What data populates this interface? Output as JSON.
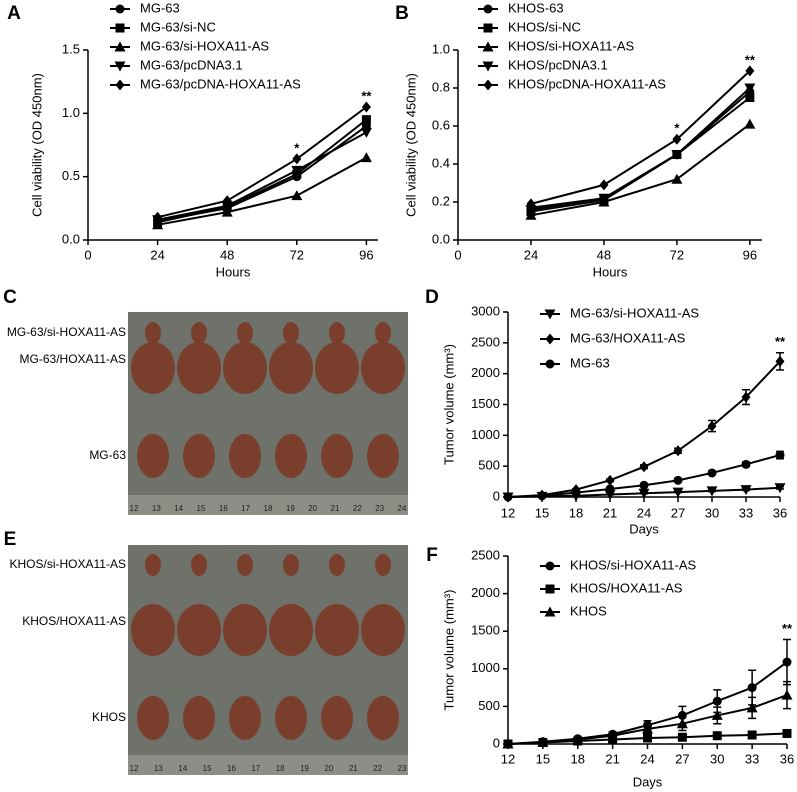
{
  "chart_data": [
    {
      "type": "line",
      "panel": "A",
      "x_label": "Hours",
      "y_label": "Cell viability (OD 450nm)",
      "x": [
        24,
        48,
        72,
        96
      ],
      "xlim": [
        0,
        100
      ],
      "xticks": [
        0,
        24,
        48,
        72,
        96
      ],
      "ylim": [
        0,
        1.5
      ],
      "yticks": [
        {
          "value": 0,
          "label": "0.0"
        },
        0.5,
        {
          "value": 1,
          "label": "1.0"
        },
        1.5
      ],
      "series": [
        {
          "name": "MG-63",
          "color": "#000000",
          "marker": "circle",
          "values": [
            0.15,
            0.25,
            0.5,
            0.9
          ]
        },
        {
          "name": "MG-63/si-NC",
          "color": "#000000",
          "marker": "square",
          "values": [
            0.14,
            0.26,
            0.52,
            0.95
          ]
        },
        {
          "name": "MG-63/si-HOXA11-AS",
          "color": "#000000",
          "marker": "triangle-up",
          "values": [
            0.12,
            0.22,
            0.35,
            0.65
          ]
        },
        {
          "name": "MG-63/pcDNA3.1",
          "color": "#000000",
          "marker": "triangle-down",
          "values": [
            0.16,
            0.27,
            0.55,
            0.85
          ]
        },
        {
          "name": "MG-63/pcDNA-HOXA11-AS",
          "color": "#000000",
          "marker": "diamond",
          "values": [
            0.18,
            0.31,
            0.64,
            1.05
          ]
        }
      ],
      "annotations": [
        {
          "text": "*",
          "x": 72
        },
        {
          "text": "**",
          "x": 96
        }
      ]
    },
    {
      "type": "line",
      "panel": "B",
      "x_label": "Hours",
      "y_label": "Cell viability (OD 450nm)",
      "x": [
        24,
        48,
        72,
        96
      ],
      "xlim": [
        0,
        100
      ],
      "xticks": [
        0,
        24,
        48,
        72,
        96
      ],
      "ylim": [
        0,
        1
      ],
      "yticks": [
        {
          "value": 0,
          "label": "0.0"
        },
        0.2,
        0.4,
        0.6,
        0.8,
        {
          "value": 1,
          "label": "1.0"
        }
      ],
      "series": [
        {
          "name": "KHOS-63",
          "color": "#000000",
          "marker": "circle",
          "values": [
            0.17,
            0.22,
            0.45,
            0.78
          ]
        },
        {
          "name": "KHOS/si-NC",
          "color": "#000000",
          "marker": "square",
          "values": [
            0.15,
            0.21,
            0.45,
            0.75
          ]
        },
        {
          "name": "KHOS/si-HOXA11-AS",
          "color": "#000000",
          "marker": "triangle-up",
          "values": [
            0.13,
            0.2,
            0.32,
            0.61
          ]
        },
        {
          "name": "KHOS/pcDNA3.1",
          "color": "#000000",
          "marker": "triangle-down",
          "values": [
            0.16,
            0.22,
            0.45,
            0.8
          ]
        },
        {
          "name": "KHOS/pcDNA-HOXA11-AS",
          "color": "#000000",
          "marker": "diamond",
          "values": [
            0.19,
            0.29,
            0.53,
            0.89
          ]
        }
      ],
      "annotations": [
        {
          "text": "*",
          "x": 72
        },
        {
          "text": "**",
          "x": 96
        }
      ]
    },
    {
      "type": "line",
      "panel": "D",
      "x_label": "Days",
      "y_label": "Tumor volume (mm³)",
      "x": [
        12,
        15,
        18,
        21,
        24,
        27,
        30,
        33,
        36
      ],
      "xlim": [
        12,
        36
      ],
      "xticks": [
        12,
        15,
        18,
        21,
        24,
        27,
        30,
        33,
        36
      ],
      "ylim": [
        0,
        3000
      ],
      "yticks": [
        0,
        500,
        1000,
        1500,
        2000,
        2500,
        3000
      ],
      "series": [
        {
          "name": "MG-63/si-HOXA11-AS",
          "color": "#000000",
          "marker": "triangle-down",
          "values": [
            0,
            10,
            20,
            40,
            60,
            80,
            100,
            120,
            150
          ],
          "errors": [
            0,
            2,
            4,
            5,
            8,
            10,
            12,
            15,
            20
          ]
        },
        {
          "name": "MG-63/HOXA11-AS",
          "color": "#000000",
          "marker": "diamond",
          "values": [
            0,
            30,
            120,
            270,
            490,
            750,
            1150,
            1620,
            2200
          ],
          "errors": [
            0,
            5,
            10,
            20,
            30,
            40,
            90,
            120,
            140
          ]
        },
        {
          "name": "MG-63",
          "color": "#000000",
          "marker": "circle",
          "values": [
            0,
            20,
            70,
            130,
            190,
            270,
            390,
            530,
            680
          ],
          "errors": [
            0,
            3,
            6,
            10,
            15,
            20,
            25,
            35,
            60
          ]
        }
      ],
      "annotations": [
        {
          "text": "**",
          "x": 36
        }
      ]
    },
    {
      "type": "line",
      "panel": "F",
      "x_label": "Days",
      "y_label": "Tumor volume (mm³)",
      "x": [
        12,
        15,
        18,
        21,
        24,
        27,
        30,
        33,
        36
      ],
      "xlim": [
        12,
        36
      ],
      "xticks": [
        12,
        15,
        18,
        21,
        24,
        27,
        30,
        33,
        36
      ],
      "ylim": [
        0,
        2500
      ],
      "yticks": [
        0,
        500,
        1000,
        1500,
        2000,
        2500
      ],
      "series": [
        {
          "name": "KHOS/si-HOXA11-AS",
          "color": "#000000",
          "marker": "circle",
          "values": [
            0,
            30,
            70,
            130,
            250,
            380,
            570,
            750,
            1090
          ],
          "errors": [
            0,
            5,
            10,
            30,
            60,
            120,
            150,
            230,
            300
          ]
        },
        {
          "name": "KHOS/HOXA11-AS",
          "color": "#000000",
          "marker": "square",
          "values": [
            0,
            20,
            40,
            60,
            80,
            90,
            110,
            120,
            140
          ],
          "errors": [
            0,
            3,
            5,
            8,
            10,
            10,
            12,
            12,
            15
          ]
        },
        {
          "name": "KHOS",
          "color": "#000000",
          "marker": "triangle-up",
          "values": [
            0,
            25,
            60,
            110,
            200,
            270,
            380,
            480,
            650
          ],
          "errors": [
            0,
            5,
            10,
            25,
            50,
            90,
            110,
            140,
            180
          ]
        }
      ],
      "annotations": [
        {
          "text": "**",
          "x": 36
        }
      ]
    }
  ],
  "photos": [
    {
      "panel": "C",
      "rows": [
        "MG-63/si-HOXA11-AS",
        "MG-63/HOXA11-AS",
        "MG-63"
      ],
      "ruler": [
        12,
        13,
        14,
        15,
        16,
        17,
        18,
        19,
        20,
        21,
        22,
        23,
        24
      ]
    },
    {
      "panel": "E",
      "rows": [
        "KHOS/si-HOXA11-AS",
        "KHOS/HOXA11-AS",
        "KHOS"
      ],
      "ruler": [
        12,
        13,
        14,
        15,
        16,
        17,
        18,
        19,
        20,
        21,
        22,
        23
      ]
    }
  ]
}
